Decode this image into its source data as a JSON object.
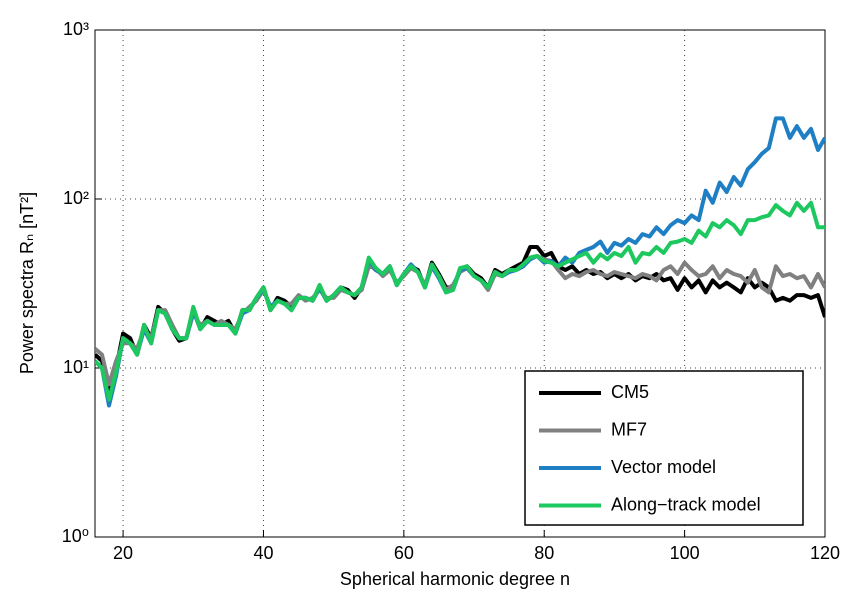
{
  "chart_data": {
    "type": "line",
    "x_label": "Spherical harmonic degree n",
    "y_label": "Power spectra Rₙ [nT²]",
    "x": [
      16,
      17,
      18,
      19,
      20,
      21,
      22,
      23,
      24,
      25,
      26,
      27,
      28,
      29,
      30,
      31,
      32,
      33,
      34,
      35,
      36,
      37,
      38,
      39,
      40,
      41,
      42,
      43,
      44,
      45,
      46,
      47,
      48,
      49,
      50,
      51,
      52,
      53,
      54,
      55,
      56,
      57,
      58,
      59,
      60,
      61,
      62,
      63,
      64,
      65,
      66,
      67,
      68,
      69,
      70,
      71,
      72,
      73,
      74,
      75,
      76,
      77,
      78,
      79,
      80,
      81,
      82,
      83,
      84,
      85,
      86,
      87,
      88,
      89,
      90,
      91,
      92,
      93,
      94,
      95,
      96,
      97,
      98,
      99,
      100,
      101,
      102,
      103,
      104,
      105,
      106,
      107,
      108,
      109,
      110,
      111,
      112,
      113,
      114,
      115,
      116,
      117,
      118,
      119,
      120
    ],
    "series": [
      {
        "name": "CM5",
        "color": "#000000",
        "values": [
          12,
          11,
          7.5,
          10,
          16,
          15,
          12,
          18,
          15,
          23,
          21,
          17,
          14.5,
          15,
          22,
          17,
          20,
          19,
          18,
          19,
          16,
          22,
          22,
          26,
          30,
          22,
          26,
          25,
          23,
          26,
          26,
          25,
          30,
          25,
          27,
          30,
          29,
          26,
          30,
          42,
          38,
          36,
          40,
          31,
          36,
          40,
          38,
          30,
          42,
          36,
          30,
          30,
          38,
          40,
          36,
          34,
          30,
          38,
          36,
          38,
          40,
          42,
          52,
          52,
          46,
          48,
          40,
          38,
          40,
          36,
          38,
          36,
          37,
          34,
          36,
          34,
          36,
          33,
          35,
          34,
          36,
          33,
          34,
          29,
          34,
          30,
          33,
          28,
          33,
          30,
          32,
          30,
          28,
          34,
          30,
          32,
          30,
          25,
          26,
          25,
          27,
          27,
          26,
          27,
          20
        ]
      },
      {
        "name": "MF7",
        "color": "#808080",
        "values": [
          13,
          12,
          8,
          11,
          14,
          14,
          13,
          17,
          15,
          22,
          22,
          18,
          15,
          15,
          21,
          18,
          19,
          18,
          19,
          18,
          17,
          21,
          23,
          25,
          29,
          23,
          25,
          24,
          24,
          27,
          25,
          26,
          29,
          26,
          26,
          29,
          28,
          27,
          29,
          40,
          39,
          35,
          38,
          32,
          35,
          39,
          37,
          31,
          40,
          35,
          29,
          31,
          37,
          39,
          35,
          33,
          29,
          36,
          35,
          37,
          38,
          40,
          45,
          46,
          44,
          43,
          38,
          34,
          36,
          35,
          37,
          38,
          36,
          35,
          37,
          36,
          35,
          34,
          36,
          35,
          33,
          38,
          40,
          36,
          42,
          38,
          35,
          36,
          40,
          34,
          38,
          36,
          35,
          32,
          38,
          30,
          28,
          40,
          35,
          36,
          34,
          35,
          30,
          36,
          30
        ]
      },
      {
        "name": "Vector model",
        "color": "#1f7fc4",
        "values": [
          11,
          10,
          6,
          9,
          15,
          14,
          12,
          17,
          14,
          22,
          21,
          17,
          15,
          15,
          22,
          17,
          19,
          18,
          18,
          18,
          16,
          21,
          22,
          26,
          29,
          23,
          25,
          24,
          22,
          26,
          26,
          25,
          30,
          25,
          27,
          30,
          28,
          27,
          30,
          44,
          38,
          36,
          40,
          31,
          36,
          41,
          37,
          30,
          40,
          34,
          28,
          29,
          38,
          39,
          35,
          33,
          30,
          37,
          35,
          37,
          38,
          40,
          44,
          46,
          42,
          43,
          40,
          45,
          42,
          48,
          50,
          52,
          56,
          48,
          55,
          53,
          58,
          55,
          62,
          60,
          68,
          62,
          70,
          75,
          72,
          80,
          75,
          112,
          95,
          125,
          110,
          135,
          120,
          150,
          165,
          185,
          200,
          300,
          300,
          230,
          270,
          230,
          260,
          195,
          230
        ]
      },
      {
        "name": "Along−track model",
        "color": "#1dc95f",
        "values": [
          11,
          10,
          6.5,
          9.5,
          15,
          14,
          12,
          18,
          14,
          22,
          21,
          17,
          15,
          15,
          23,
          17,
          19,
          18,
          18,
          18,
          16,
          22,
          22,
          26,
          30,
          22,
          25,
          24,
          22,
          26,
          26,
          25,
          31,
          25,
          27,
          30,
          28,
          27,
          30,
          45,
          39,
          36,
          40,
          31,
          36,
          40,
          37,
          30,
          41,
          35,
          28,
          29,
          39,
          40,
          35,
          33,
          30,
          37,
          35,
          38,
          38,
          41,
          45,
          46,
          43,
          42,
          40,
          42,
          44,
          46,
          48,
          42,
          47,
          44,
          48,
          46,
          52,
          42,
          48,
          47,
          52,
          48,
          55,
          56,
          58,
          55,
          65,
          60,
          72,
          68,
          75,
          70,
          62,
          75,
          75,
          78,
          80,
          92,
          85,
          80,
          95,
          85,
          95,
          68,
          68
        ]
      }
    ],
    "xlim": [
      16,
      120
    ],
    "xticks": [
      20,
      40,
      60,
      80,
      100,
      120
    ],
    "ylim": [
      1,
      1000
    ],
    "log_y": true,
    "yticks": [
      {
        "value": 1,
        "label": "10⁰"
      },
      {
        "value": 10,
        "label": "10¹"
      },
      {
        "value": 100,
        "label": "10²"
      },
      {
        "value": 1000,
        "label": "10³"
      }
    ],
    "grid": true,
    "legend": "lower right"
  }
}
